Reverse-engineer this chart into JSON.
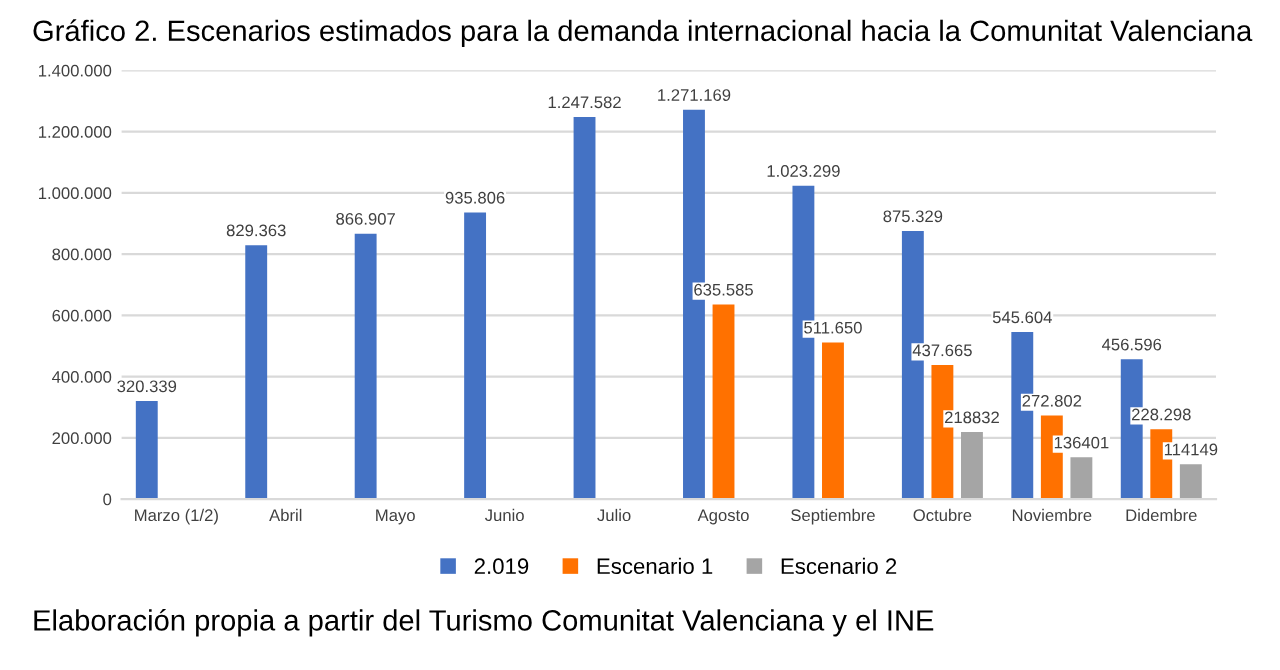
{
  "chart_data": {
    "type": "bar",
    "title": "Gráfico 2. Escenarios estimados para la demanda internacional hacia la Comunitat Valenciana",
    "annotations": [
      "Elaboración propia a partir del Turismo Comunitat Valenciana y el INE"
    ],
    "categories": [
      "Marzo (1/2)",
      "Abril",
      "Mayo",
      "Junio",
      "Julio",
      "Agosto",
      "Septiembre",
      "Octubre",
      "Noviembre",
      "Didembre"
    ],
    "series": [
      {
        "name": "2.019",
        "color": "#4472c4",
        "values": [
          320339,
          829363,
          866907,
          935806,
          1247582,
          1271169,
          1023299,
          875329,
          545604,
          456596
        ],
        "value_labels": [
          "320.339",
          "829.363",
          "866.907",
          "935.806",
          "1.247.582",
          "1.271.169",
          "1.023.299",
          "875.329",
          "545.604",
          "456.596"
        ]
      },
      {
        "name": "Escenario 1",
        "color": "#ff7100",
        "values": [
          null,
          null,
          null,
          null,
          null,
          635585,
          511650,
          437665,
          272802,
          228298
        ],
        "value_labels": [
          null,
          null,
          null,
          null,
          null,
          "635.585",
          "511.650",
          "437.665",
          "272.802",
          "228.298"
        ]
      },
      {
        "name": "Escenario 2",
        "color": "#a5a5a5",
        "values": [
          null,
          null,
          null,
          null,
          null,
          null,
          null,
          218832,
          136401,
          114149
        ],
        "value_labels": [
          null,
          null,
          null,
          null,
          null,
          null,
          null,
          "218832",
          "136401",
          "114149"
        ]
      }
    ],
    "ylim": [
      0,
      1400000
    ],
    "yticks": [
      {
        "value": 0,
        "label": "0"
      },
      {
        "value": 200000,
        "label": "200.000"
      },
      {
        "value": 400000,
        "label": "400.000"
      },
      {
        "value": 600000,
        "label": "600.000"
      },
      {
        "value": 800000,
        "label": "800.000"
      },
      {
        "value": 1000000,
        "label": "1.000.000"
      },
      {
        "value": 1200000,
        "label": "1.200.000"
      },
      {
        "value": 1400000,
        "label": "1.400.000"
      }
    ],
    "grid": "y",
    "legend": "bottom"
  }
}
